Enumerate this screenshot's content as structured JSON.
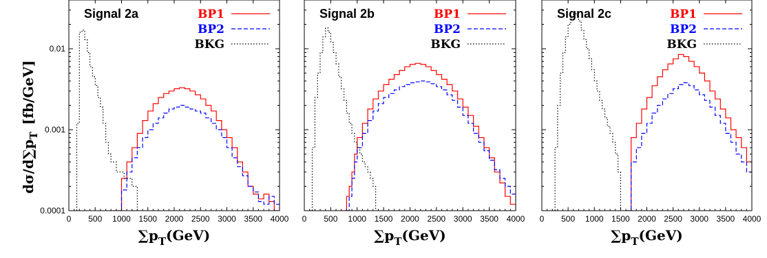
{
  "ylabel_main": "dσ/d∑p",
  "ylabel_sub": "T",
  "ylabel_unit": "[fb/GeV]",
  "xlabel_main": "∑p",
  "xlabel_sub": "T",
  "xlabel_unit": "(GeV)",
  "colors": {
    "BP1": "#ff0000",
    "BP2": "#0000ff",
    "BKG": "#000000"
  },
  "chart_data": [
    {
      "type": "line",
      "title": "Signal 2a",
      "ylog": true,
      "xlim": [
        0,
        4000
      ],
      "ylim": [
        0.0001,
        0.04
      ],
      "xticks": [
        "0",
        "500",
        "1000",
        "1500",
        "2000",
        "2500",
        "3000",
        "3500",
        "4000"
      ],
      "yticks": [
        "0.0001",
        "0.001",
        "0.01"
      ],
      "legend": [
        "BP1",
        "BP2",
        "BKG"
      ],
      "series": [
        {
          "name": "BP1",
          "style": "solid",
          "x": [
            850,
            1000,
            1100,
            1200,
            1300,
            1400,
            1500,
            1600,
            1700,
            1800,
            1900,
            2000,
            2100,
            2200,
            2300,
            2400,
            2500,
            2600,
            2700,
            2800,
            2900,
            3000,
            3100,
            3200,
            3300,
            3400,
            3500,
            3600,
            3700,
            3800,
            3900,
            4000
          ],
          "y": [
            0.0001,
            0.00025,
            0.0004,
            0.0006,
            0.0009,
            0.0013,
            0.0017,
            0.0021,
            0.0025,
            0.0028,
            0.003,
            0.0032,
            0.0033,
            0.0032,
            0.003,
            0.0027,
            0.0024,
            0.002,
            0.0017,
            0.0013,
            0.001,
            0.0008,
            0.0006,
            0.0004,
            0.0003,
            0.0002,
            0.00016,
            0.00014,
            0.00016,
            0.00013,
            0.0001,
            0.0001
          ]
        },
        {
          "name": "BP2",
          "style": "dashed",
          "x": [
            950,
            1000,
            1100,
            1200,
            1300,
            1400,
            1500,
            1600,
            1700,
            1800,
            1900,
            2000,
            2100,
            2200,
            2300,
            2400,
            2500,
            2600,
            2700,
            2800,
            2900,
            3000,
            3100,
            3200,
            3300,
            3400,
            3500,
            3600,
            3700,
            3800,
            3900,
            4000
          ],
          "y": [
            0.0001,
            0.00018,
            0.0003,
            0.00045,
            0.0006,
            0.0008,
            0.001,
            0.0012,
            0.0014,
            0.0016,
            0.0018,
            0.0019,
            0.002,
            0.0019,
            0.0018,
            0.0017,
            0.0016,
            0.0014,
            0.0012,
            0.001,
            0.0008,
            0.0006,
            0.00045,
            0.00035,
            0.00027,
            0.0002,
            0.00017,
            0.00013,
            0.00012,
            0.00015,
            0.00012,
            0.0001
          ]
        },
        {
          "name": "BKG",
          "style": "dotted",
          "x": [
            100,
            150,
            200,
            250,
            300,
            350,
            400,
            450,
            500,
            550,
            600,
            650,
            700,
            750,
            800,
            850,
            900,
            950,
            1000,
            1050,
            1100,
            1150,
            1200,
            1250,
            1300
          ],
          "y": [
            0.0001,
            0.0012,
            0.016,
            0.017,
            0.013,
            0.009,
            0.006,
            0.0045,
            0.0035,
            0.0025,
            0.0019,
            0.0012,
            0.0007,
            0.0005,
            0.0004,
            0.0004,
            0.0003,
            0.0003,
            0.0003,
            0.00025,
            0.00025,
            0.00025,
            0.0002,
            0.0002,
            0.0001
          ]
        }
      ]
    },
    {
      "type": "line",
      "title": "Signal 2b",
      "ylog": true,
      "xlim": [
        0,
        4000
      ],
      "ylim": [
        0.0001,
        0.04
      ],
      "xticks": [
        "0",
        "500",
        "1000",
        "1500",
        "2000",
        "2500",
        "3000",
        "3500",
        "4000"
      ],
      "yticks": [
        "0.0001",
        "0.001",
        "0.01"
      ],
      "legend": [
        "BP1",
        "BP2",
        "BKG"
      ],
      "series": [
        {
          "name": "BP1",
          "style": "solid",
          "x": [
            750,
            800,
            850,
            900,
            950,
            1000,
            1100,
            1200,
            1300,
            1400,
            1500,
            1600,
            1700,
            1800,
            1900,
            2000,
            2100,
            2200,
            2300,
            2400,
            2500,
            2600,
            2700,
            2800,
            2900,
            3000,
            3100,
            3200,
            3300,
            3400,
            3500,
            3600,
            3700,
            3800,
            3900,
            4000
          ],
          "y": [
            0.0001,
            0.00015,
            0.0002,
            0.0003,
            0.0005,
            0.0008,
            0.0012,
            0.0018,
            0.0024,
            0.003,
            0.0036,
            0.0042,
            0.0048,
            0.0054,
            0.006,
            0.0064,
            0.0066,
            0.0064,
            0.006,
            0.0054,
            0.0048,
            0.0042,
            0.0036,
            0.003,
            0.0024,
            0.0019,
            0.0015,
            0.0011,
            0.0008,
            0.0006,
            0.00045,
            0.0003,
            0.00022,
            0.00015,
            0.00012,
            0.0001
          ]
        },
        {
          "name": "BP2",
          "style": "dashed",
          "x": [
            800,
            850,
            900,
            950,
            1000,
            1100,
            1200,
            1300,
            1400,
            1500,
            1600,
            1700,
            1800,
            1900,
            2000,
            2100,
            2200,
            2300,
            2400,
            2500,
            2600,
            2700,
            2800,
            2900,
            3000,
            3100,
            3200,
            3300,
            3400,
            3500,
            3600,
            3700,
            3800,
            3900,
            4000
          ],
          "y": [
            0.0001,
            0.00015,
            0.00025,
            0.0004,
            0.0006,
            0.0009,
            0.0013,
            0.0017,
            0.0021,
            0.0025,
            0.0028,
            0.0031,
            0.0034,
            0.0036,
            0.0038,
            0.0039,
            0.004,
            0.0039,
            0.0037,
            0.0034,
            0.0031,
            0.0027,
            0.0023,
            0.0019,
            0.0015,
            0.0012,
            0.0009,
            0.0007,
            0.00055,
            0.00042,
            0.00032,
            0.00025,
            0.0002,
            0.00016,
            0.00013
          ]
        },
        {
          "name": "BKG",
          "style": "dotted",
          "x": [
            100,
            150,
            200,
            250,
            300,
            350,
            400,
            450,
            500,
            550,
            600,
            650,
            700,
            750,
            800,
            850,
            900,
            950,
            1000,
            1050,
            1100,
            1150,
            1200,
            1250,
            1300,
            1350
          ],
          "y": [
            0.0001,
            0.0006,
            0.0025,
            0.005,
            0.009,
            0.014,
            0.018,
            0.016,
            0.012,
            0.009,
            0.0065,
            0.0045,
            0.0032,
            0.0023,
            0.0016,
            0.0012,
            0.0009,
            0.0007,
            0.0006,
            0.0005,
            0.0004,
            0.00035,
            0.0003,
            0.00025,
            0.0002,
            0.0001
          ]
        }
      ]
    },
    {
      "type": "line",
      "title": "Signal 2c",
      "ylog": true,
      "xlim": [
        0,
        4000
      ],
      "ylim": [
        0.0001,
        0.04
      ],
      "xticks": [
        "0",
        "500",
        "1000",
        "1500",
        "2000",
        "2500",
        "3000",
        "3500",
        "4000"
      ],
      "yticks": [
        "0.0001",
        "0.001",
        "0.01"
      ],
      "legend": [
        "BP1",
        "BP2",
        "BKG"
      ],
      "series": [
        {
          "name": "BP1",
          "style": "solid",
          "x": [
            1600,
            1700,
            1800,
            1900,
            2000,
            2100,
            2200,
            2300,
            2400,
            2500,
            2600,
            2700,
            2800,
            2900,
            3000,
            3100,
            3200,
            3300,
            3400,
            3500,
            3600,
            3700,
            3800,
            3900,
            4000
          ],
          "y": [
            0.0001,
            0.0008,
            0.0012,
            0.0018,
            0.0025,
            0.0035,
            0.0045,
            0.0055,
            0.0065,
            0.0075,
            0.0085,
            0.008,
            0.007,
            0.006,
            0.005,
            0.004,
            0.003,
            0.0024,
            0.0018,
            0.0014,
            0.001,
            0.0008,
            0.0006,
            0.0004,
            0.0003
          ]
        },
        {
          "name": "BP2",
          "style": "dashed",
          "x": [
            1600,
            1700,
            1800,
            1900,
            2000,
            2100,
            2200,
            2300,
            2400,
            2500,
            2600,
            2700,
            2800,
            2900,
            3000,
            3100,
            3200,
            3300,
            3400,
            3500,
            3600,
            3700,
            3800,
            3900,
            4000
          ],
          "y": [
            0.0001,
            0.0004,
            0.0006,
            0.0009,
            0.0012,
            0.0016,
            0.002,
            0.0024,
            0.0028,
            0.0032,
            0.0036,
            0.0038,
            0.0035,
            0.0031,
            0.0027,
            0.0023,
            0.0019,
            0.0015,
            0.0012,
            0.0009,
            0.0007,
            0.0005,
            0.0004,
            0.0003,
            0.0002
          ]
        },
        {
          "name": "BKG",
          "style": "dotted",
          "x": [
            200,
            250,
            300,
            350,
            400,
            450,
            500,
            550,
            600,
            650,
            700,
            750,
            800,
            850,
            900,
            950,
            1000,
            1050,
            1100,
            1150,
            1200,
            1250,
            1300,
            1350,
            1400,
            1450,
            1500
          ],
          "y": [
            0.0001,
            0.0006,
            0.002,
            0.005,
            0.009,
            0.014,
            0.02,
            0.025,
            0.028,
            0.026,
            0.022,
            0.017,
            0.013,
            0.01,
            0.0075,
            0.0055,
            0.004,
            0.003,
            0.0023,
            0.0018,
            0.0014,
            0.0011,
            0.0009,
            0.0007,
            0.0005,
            0.0003,
            0.0001
          ]
        }
      ]
    }
  ]
}
